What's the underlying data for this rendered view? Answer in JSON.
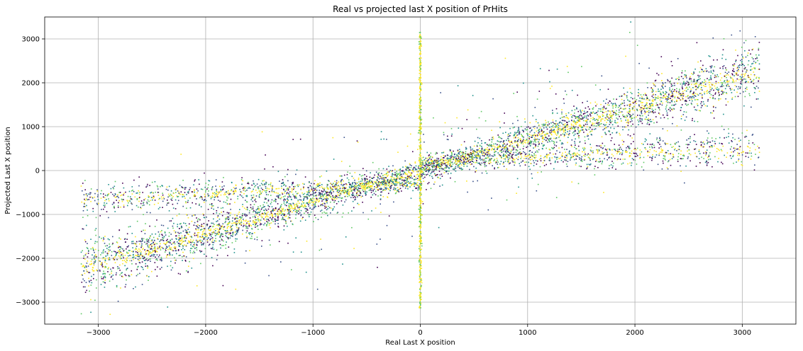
{
  "chart_data": {
    "type": "scatter",
    "title": "Real vs projected last X position of PrHits",
    "xlabel": "Real Last X position",
    "ylabel": "Projected Last X position",
    "xlim": [
      -3500,
      3500
    ],
    "ylim": [
      -3500,
      3500
    ],
    "xticks": [
      -3000,
      -2000,
      -1000,
      0,
      1000,
      2000,
      3000
    ],
    "yticks": [
      -3000,
      -2000,
      -1000,
      0,
      1000,
      2000,
      3000
    ],
    "xtick_labels": [
      "−3000",
      "−2000",
      "−1000",
      "0",
      "1000",
      "2000",
      "3000"
    ],
    "ytick_labels": [
      "−3000",
      "−2000",
      "−1000",
      "0",
      "1000",
      "2000",
      "3000"
    ],
    "grid": true,
    "colormap": "viridis",
    "colors": [
      "#440154",
      "#3b528b",
      "#21918c",
      "#5ec962",
      "#fde725"
    ],
    "components": [
      {
        "shape": "band",
        "x_range": [
          -3160,
          3160
        ],
        "slope": 0.72,
        "spread": 180,
        "points": 4200
      },
      {
        "shape": "band",
        "x_range": [
          -3160,
          0
        ],
        "slope": 0.12,
        "spread": 120,
        "offset": -300,
        "points": 900
      },
      {
        "shape": "band",
        "x_range": [
          0,
          3160
        ],
        "slope": 0.1,
        "spread": 130,
        "offset": 200,
        "points": 900
      },
      {
        "shape": "vertical_line",
        "x": 0,
        "y_range": [
          -3150,
          3150
        ],
        "points": 500
      },
      {
        "shape": "background",
        "x_range": [
          -3160,
          3160
        ],
        "y_range": [
          -3150,
          3150
        ],
        "points": 700
      }
    ]
  }
}
